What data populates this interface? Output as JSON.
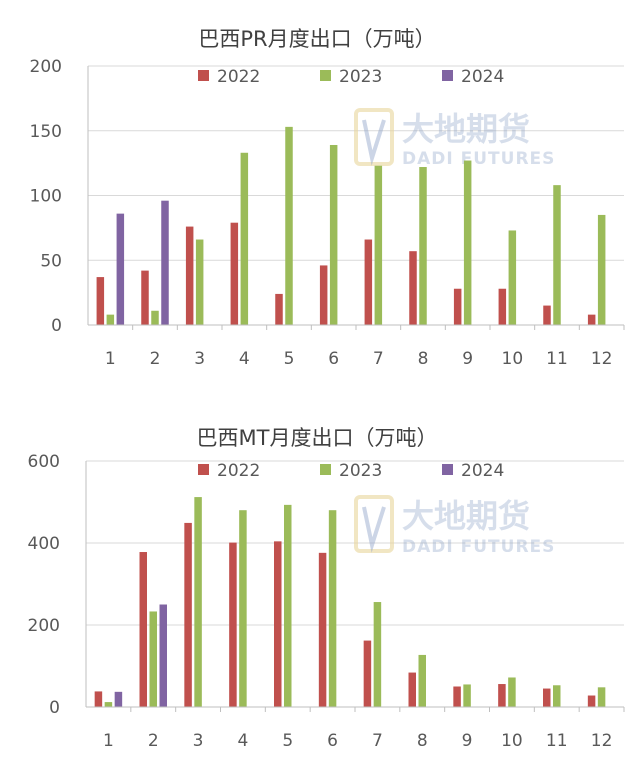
{
  "watermark": {
    "cn": "大地期货",
    "en": "DADI FUTURES"
  },
  "chart_data": [
    {
      "type": "bar",
      "title": "巴西PR月度出口（万吨）",
      "categories": [
        "1",
        "2",
        "3",
        "4",
        "5",
        "6",
        "7",
        "8",
        "9",
        "10",
        "11",
        "12"
      ],
      "ylim": [
        0,
        200
      ],
      "yticks": [
        "0",
        "50",
        "100",
        "150",
        "200"
      ],
      "grid": true,
      "legend": "top",
      "series": [
        {
          "name": "2022",
          "color": "#c0504d",
          "values": [
            37,
            42,
            76,
            79,
            24,
            46,
            66,
            57,
            28,
            28,
            15,
            8
          ]
        },
        {
          "name": "2023",
          "color": "#9bbb59",
          "values": [
            8,
            11,
            66,
            133,
            153,
            139,
            123,
            122,
            127,
            73,
            108,
            85
          ]
        },
        {
          "name": "2024",
          "color": "#8064a2",
          "values": [
            86,
            96,
            null,
            null,
            null,
            null,
            null,
            null,
            null,
            null,
            null,
            null
          ]
        }
      ]
    },
    {
      "type": "bar",
      "title": "巴西MT月度出口（万吨）",
      "categories": [
        "1",
        "2",
        "3",
        "4",
        "5",
        "6",
        "7",
        "8",
        "9",
        "10",
        "11",
        "12"
      ],
      "ylim": [
        0,
        600
      ],
      "yticks": [
        "0",
        "200",
        "400",
        "600"
      ],
      "grid": true,
      "legend": "top",
      "series": [
        {
          "name": "2022",
          "color": "#c0504d",
          "values": [
            38,
            378,
            449,
            401,
            404,
            376,
            162,
            84,
            50,
            56,
            45,
            28
          ]
        },
        {
          "name": "2023",
          "color": "#9bbb59",
          "values": [
            12,
            233,
            512,
            480,
            493,
            480,
            256,
            127,
            55,
            72,
            53,
            48
          ]
        },
        {
          "name": "2024",
          "color": "#8064a2",
          "values": [
            37,
            250,
            null,
            null,
            null,
            null,
            null,
            null,
            null,
            null,
            null,
            null
          ]
        }
      ]
    }
  ]
}
